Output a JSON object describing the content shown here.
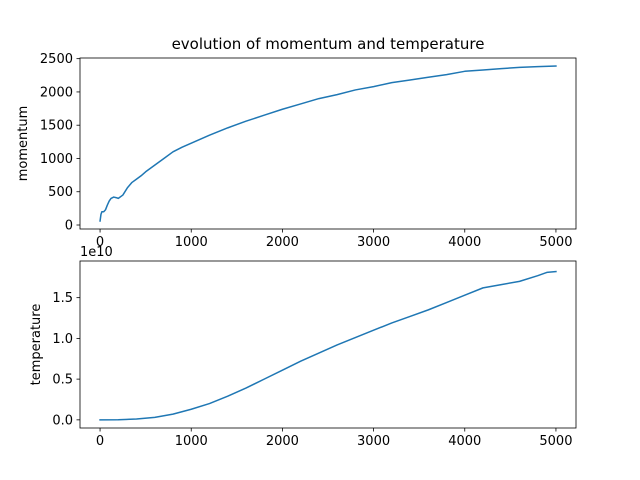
{
  "figure": {
    "title": "evolution of momentum and temperature"
  },
  "chart_data": [
    {
      "type": "line",
      "title": "evolution of momentum and temperature",
      "xlabel": "",
      "ylabel": "momentum",
      "xlim": [
        -220,
        5220
      ],
      "ylim": [
        -60,
        2510
      ],
      "xticks": [
        0,
        1000,
        2000,
        3000,
        4000,
        5000
      ],
      "xtick_labels": [
        "0",
        "1000",
        "2000",
        "3000",
        "4000",
        "5000"
      ],
      "yticks": [
        0,
        500,
        1000,
        1500,
        2000,
        2500
      ],
      "ytick_labels": [
        "0",
        "500",
        "1000",
        "1500",
        "2000",
        "2500"
      ],
      "grid": false,
      "color": "#1f77b4",
      "series": [
        {
          "x": [
            0,
            10,
            20,
            40,
            60,
            80,
            100,
            120,
            150,
            180,
            200,
            250,
            300,
            350,
            400,
            450,
            500,
            600,
            700,
            800,
            900,
            1000,
            1200,
            1400,
            1600,
            1800,
            2000,
            2200,
            2400,
            2600,
            2800,
            3000,
            3200,
            3400,
            3600,
            3800,
            4000,
            4200,
            4400,
            4600,
            4800,
            5000
          ],
          "y": [
            60,
            160,
            200,
            200,
            230,
            300,
            360,
            400,
            420,
            410,
            400,
            450,
            560,
            640,
            690,
            740,
            800,
            900,
            1000,
            1100,
            1170,
            1230,
            1350,
            1460,
            1560,
            1650,
            1740,
            1820,
            1900,
            1960,
            2030,
            2080,
            2140,
            2180,
            2220,
            2260,
            2310,
            2330,
            2350,
            2370,
            2380,
            2390
          ]
        }
      ]
    },
    {
      "type": "line",
      "xlabel": "",
      "ylabel": "temperature",
      "offset_label": "1e10",
      "xlim": [
        -220,
        5220
      ],
      "ylim": [
        -0.1,
        1.95
      ],
      "xticks": [
        0,
        1000,
        2000,
        3000,
        4000,
        5000
      ],
      "xtick_labels": [
        "0",
        "1000",
        "2000",
        "3000",
        "4000",
        "5000"
      ],
      "yticks": [
        0,
        0.5,
        1.0,
        1.5
      ],
      "ytick_labels": [
        "0.0",
        "0.5",
        "1.0",
        "1.5"
      ],
      "grid": false,
      "color": "#1f77b4",
      "series": [
        {
          "x": [
            0,
            200,
            400,
            600,
            800,
            1000,
            1200,
            1400,
            1600,
            1800,
            2000,
            2200,
            2400,
            2600,
            2800,
            3000,
            3200,
            3400,
            3600,
            3800,
            4000,
            4200,
            4400,
            4600,
            4800,
            4900,
            5000
          ],
          "y": [
            0.0,
            0.002,
            0.01,
            0.03,
            0.07,
            0.13,
            0.2,
            0.29,
            0.39,
            0.5,
            0.61,
            0.72,
            0.82,
            0.92,
            1.01,
            1.1,
            1.19,
            1.27,
            1.35,
            1.44,
            1.53,
            1.62,
            1.66,
            1.7,
            1.77,
            1.81,
            1.82
          ]
        }
      ]
    }
  ]
}
